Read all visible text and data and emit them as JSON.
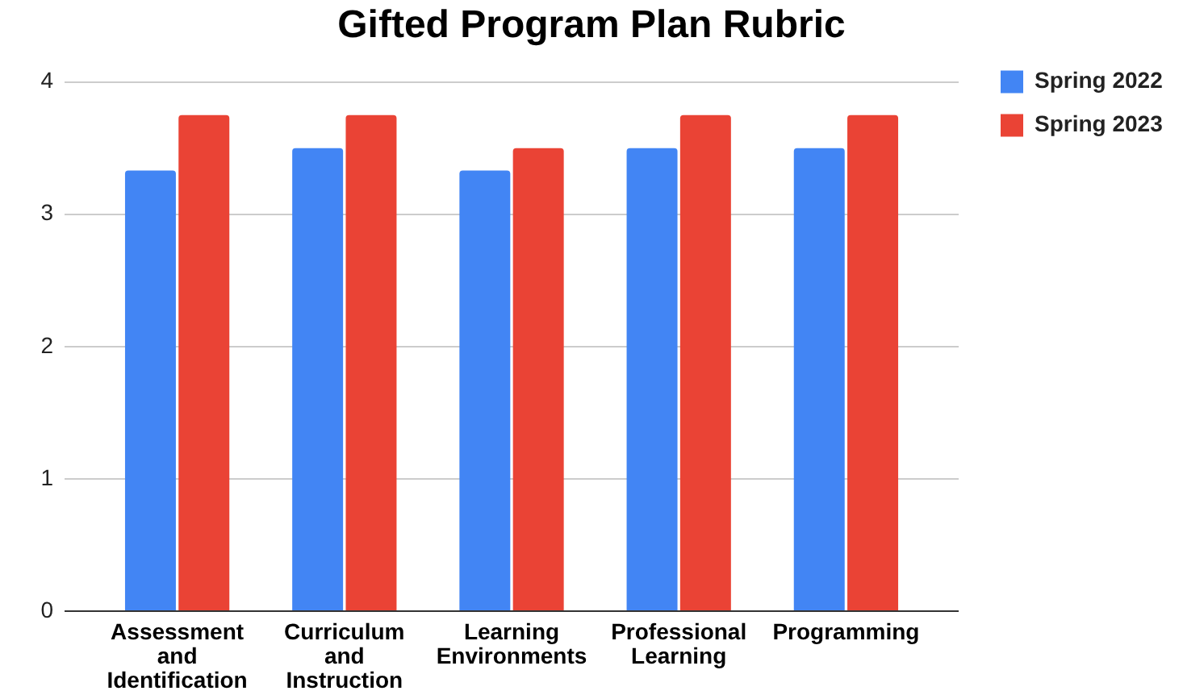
{
  "chart_data": {
    "type": "bar",
    "title": "Gifted Program Plan Rubric",
    "categories": [
      "Assessment and Identification",
      "Curriculum and Instruction",
      "Learning Environments",
      "Professional Learning",
      "Programming"
    ],
    "series": [
      {
        "name": "Spring 2022",
        "color": "#4285f4",
        "values": [
          3.33,
          3.5,
          3.33,
          3.5,
          3.5
        ]
      },
      {
        "name": "Spring 2023",
        "color": "#ea4335",
        "values": [
          3.75,
          3.75,
          3.5,
          3.75,
          3.75
        ]
      }
    ],
    "ylim": [
      0,
      4
    ],
    "yticks": [
      0,
      1,
      2,
      3,
      4
    ],
    "grid": "y",
    "legend": "top right"
  }
}
